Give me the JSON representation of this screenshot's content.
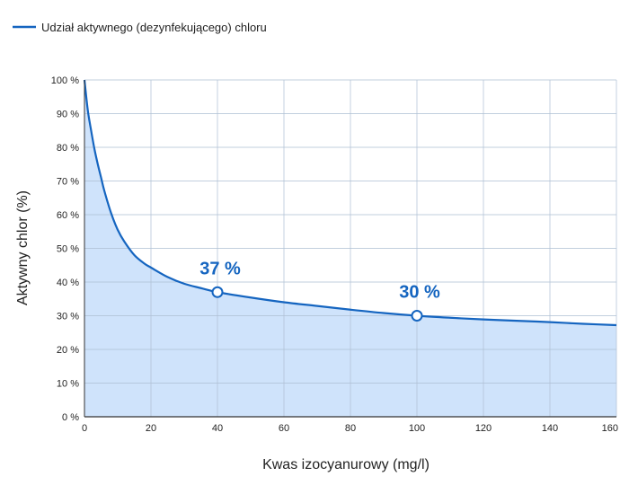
{
  "chart_data": {
    "type": "area",
    "series": [
      {
        "name": "Udział aktywnego (dezynfekującego) chloru",
        "x": [
          0,
          1,
          2,
          3,
          4,
          5,
          6,
          8,
          10,
          12,
          15,
          18,
          20,
          25,
          30,
          35,
          40,
          50,
          60,
          70,
          80,
          90,
          100,
          110,
          120,
          130,
          140,
          150,
          160
        ],
        "y": [
          100,
          91,
          85,
          79.5,
          75,
          71,
          67,
          60.5,
          55.5,
          52,
          48,
          45.5,
          44.3,
          41.5,
          39.5,
          38.2,
          37,
          35.4,
          34,
          32.9,
          31.8,
          30.8,
          30,
          29.4,
          28.9,
          28.5,
          28.1,
          27.6,
          27.2
        ],
        "color": "#1565c0",
        "fill": "#cfe3fb"
      }
    ],
    "markers": [
      {
        "x": 40,
        "y": 37,
        "label": "37 %"
      },
      {
        "x": 100,
        "y": 30,
        "label": "30 %"
      }
    ],
    "xlabel": "Kwas izocyanurowy (mg/l)",
    "ylabel": "Aktywny chlor (%)",
    "xlim": [
      0,
      160
    ],
    "ylim": [
      0,
      100
    ],
    "xticks": [
      {
        "v": 0,
        "label": "0"
      },
      {
        "v": 20,
        "label": "20"
      },
      {
        "v": 40,
        "label": "40"
      },
      {
        "v": 60,
        "label": "60"
      },
      {
        "v": 80,
        "label": "80"
      },
      {
        "v": 100,
        "label": "100"
      },
      {
        "v": 120,
        "label": "120"
      },
      {
        "v": 140,
        "label": "140"
      },
      {
        "v": 160,
        "label": "160"
      }
    ],
    "yticks": [
      {
        "v": 0,
        "label": "0 %"
      },
      {
        "v": 10,
        "label": "10 %"
      },
      {
        "v": 20,
        "label": "20 %"
      },
      {
        "v": 30,
        "label": "30 %"
      },
      {
        "v": 40,
        "label": "40 %"
      },
      {
        "v": 50,
        "label": "50 %"
      },
      {
        "v": 60,
        "label": "60 %"
      },
      {
        "v": 70,
        "label": "70 %"
      },
      {
        "v": 80,
        "label": "80 %"
      },
      {
        "v": 90,
        "label": "90 %"
      },
      {
        "v": 100,
        "label": "100 %"
      }
    ],
    "grid": true,
    "legend": "top-left",
    "colors": {
      "grid": "#aebfd3",
      "axis": "#333333"
    }
  }
}
